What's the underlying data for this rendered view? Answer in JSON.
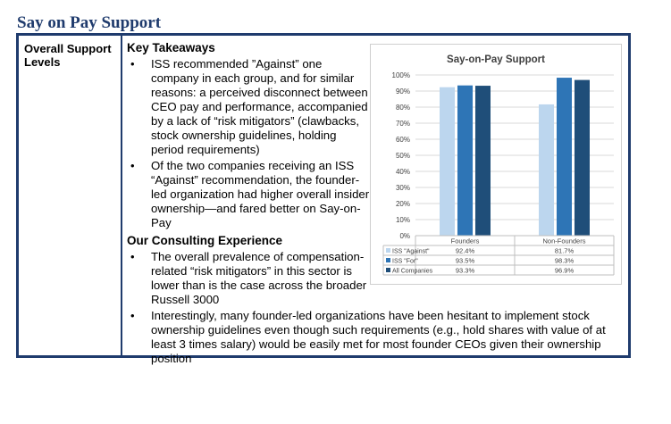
{
  "title": "Say on Pay Support",
  "left_label": "Overall Support Levels",
  "sections": {
    "takeaways_heading": "Key Takeaways",
    "takeaways": [
      "ISS recommended ”Against” one company in each group, and for similar reasons: a perceived disconnect between CEO pay and performance, accompanied by a lack of “risk mitigators” (clawbacks, stock ownership guidelines, holding period requirements)",
      "Of the two companies receiving an ISS “Against” recommendation, the founder-led organization had higher overall insider ownership—and fared better on Say-on-Pay"
    ],
    "experience_heading": "Our Consulting Experience",
    "experience": [
      "The overall prevalence of compensation-related “risk mitigators” in this sector is lower than is the case across the broader Russell 3000",
      "Interestingly, many founder-led organizations have been hesitant to implement stock ownership guidelines even though such requirements (e.g., hold shares with value of at least 3 times salary) would be easily met for most founder CEOs given their ownership position"
    ]
  },
  "chart_data": {
    "type": "bar",
    "title": "Say-on-Pay Support",
    "categories": [
      "Founders",
      "Non-Founders"
    ],
    "series": [
      {
        "name": "ISS \"Against\"",
        "values": [
          92.4,
          81.7
        ],
        "labels": [
          "92.4%",
          "81.7%"
        ],
        "color": "#bcd6ee"
      },
      {
        "name": "ISS \"For\"",
        "values": [
          93.5,
          98.3
        ],
        "labels": [
          "93.5%",
          "98.3%"
        ],
        "color": "#2e75b6"
      },
      {
        "name": "All Companies",
        "values": [
          93.3,
          96.9
        ],
        "labels": [
          "93.3%",
          "96.9%"
        ],
        "color": "#1f4e79"
      }
    ],
    "yticks": [
      "0%",
      "10%",
      "20%",
      "30%",
      "40%",
      "50%",
      "60%",
      "70%",
      "80%",
      "90%",
      "100%"
    ],
    "ylim": [
      0,
      100
    ],
    "grid": true,
    "legend": "data-table"
  }
}
